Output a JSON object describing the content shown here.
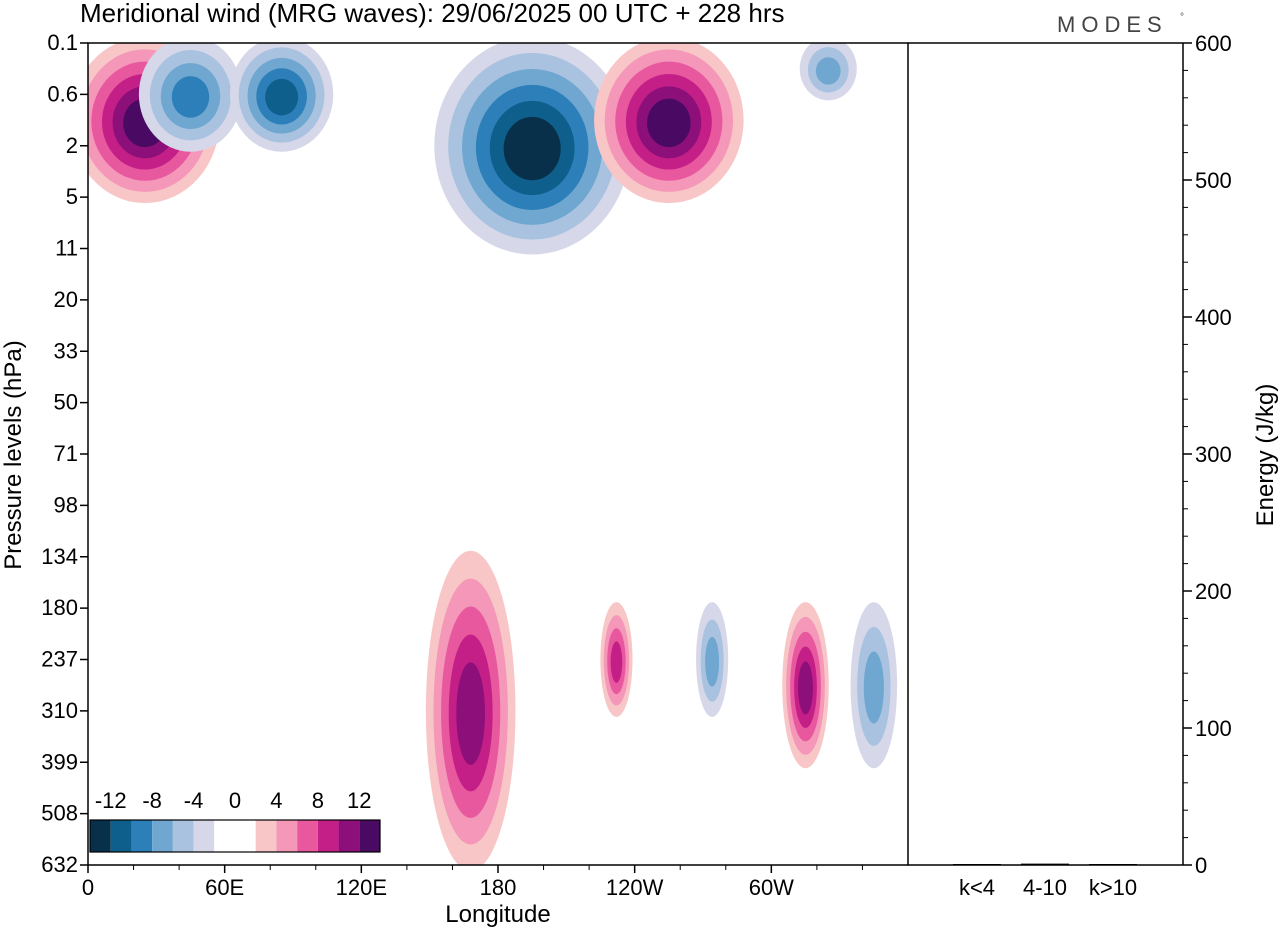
{
  "chart_data": [
    {
      "type": "heatmap",
      "title": "Meridional wind (MRG waves):  29/06/2025  00 UTC  + 228 hrs",
      "xlabel": "Longitude",
      "ylabel": "Pressure levels (hPa)",
      "x_ticks": [
        "0",
        "60E",
        "120E",
        "180",
        "120W",
        "60W"
      ],
      "y_ticks": [
        "0.1",
        "0.6",
        "2",
        "5",
        "11",
        "20",
        "33",
        "50",
        "71",
        "98",
        "134",
        "180",
        "237",
        "310",
        "399",
        "508",
        "632"
      ],
      "colorbar": {
        "labels": [
          "-12",
          "-8",
          "-4",
          "0",
          "4",
          "8",
          "12"
        ],
        "colors": [
          "#08304a",
          "#0f5f8c",
          "#2c7fb8",
          "#6fa7d1",
          "#a9c2df",
          "#d6d8ea",
          "#ffffff",
          "#ffffff",
          "#f8c6c6",
          "#f497b8",
          "#e8589e",
          "#c41f87",
          "#8c0f7a",
          "#4a0a63"
        ]
      },
      "features": [
        {
          "sign": "positive",
          "lon_center": 25,
          "level_top": "0.1",
          "level_bottom": "5",
          "peak": 12
        },
        {
          "sign": "negative",
          "lon_center": 45,
          "level_top": "0.1",
          "level_bottom": "2",
          "peak": -8
        },
        {
          "sign": "negative",
          "lon_center": 85,
          "level_top": "0.1",
          "level_bottom": "2",
          "peak": -10
        },
        {
          "sign": "negative",
          "lon_center": 195,
          "level_top": "0.1",
          "level_bottom": "11",
          "peak": -12
        },
        {
          "sign": "positive",
          "lon_center": 255,
          "level_top": "0.1",
          "level_bottom": "5",
          "peak": 12
        },
        {
          "sign": "negative",
          "lon_center": 325,
          "level_top": "0.1",
          "level_bottom": "0.6",
          "peak": -6
        },
        {
          "sign": "positive",
          "lon_center": 168,
          "level_top": "134",
          "level_bottom": "632",
          "peak": 10
        },
        {
          "sign": "positive",
          "lon_center": 232,
          "level_top": "180",
          "level_bottom": "310",
          "peak": 8
        },
        {
          "sign": "negative",
          "lon_center": 274,
          "level_top": "180",
          "level_bottom": "310",
          "peak": -6
        },
        {
          "sign": "positive",
          "lon_center": 315,
          "level_top": "180",
          "level_bottom": "399",
          "peak": 10
        },
        {
          "sign": "negative",
          "lon_center": 345,
          "level_top": "180",
          "level_bottom": "399",
          "peak": -6
        }
      ]
    },
    {
      "type": "bar",
      "categories": [
        "k<4",
        "4-10",
        "k>10"
      ],
      "values": [
        0,
        1,
        0
      ],
      "ylabel": "Energy (J/kg)",
      "y_ticks": [
        "0",
        "100",
        "200",
        "300",
        "400",
        "500",
        "600"
      ],
      "ylim": [
        0,
        600
      ]
    }
  ],
  "brand": {
    "logo_text": "MODES",
    "logo_mark": "°"
  }
}
